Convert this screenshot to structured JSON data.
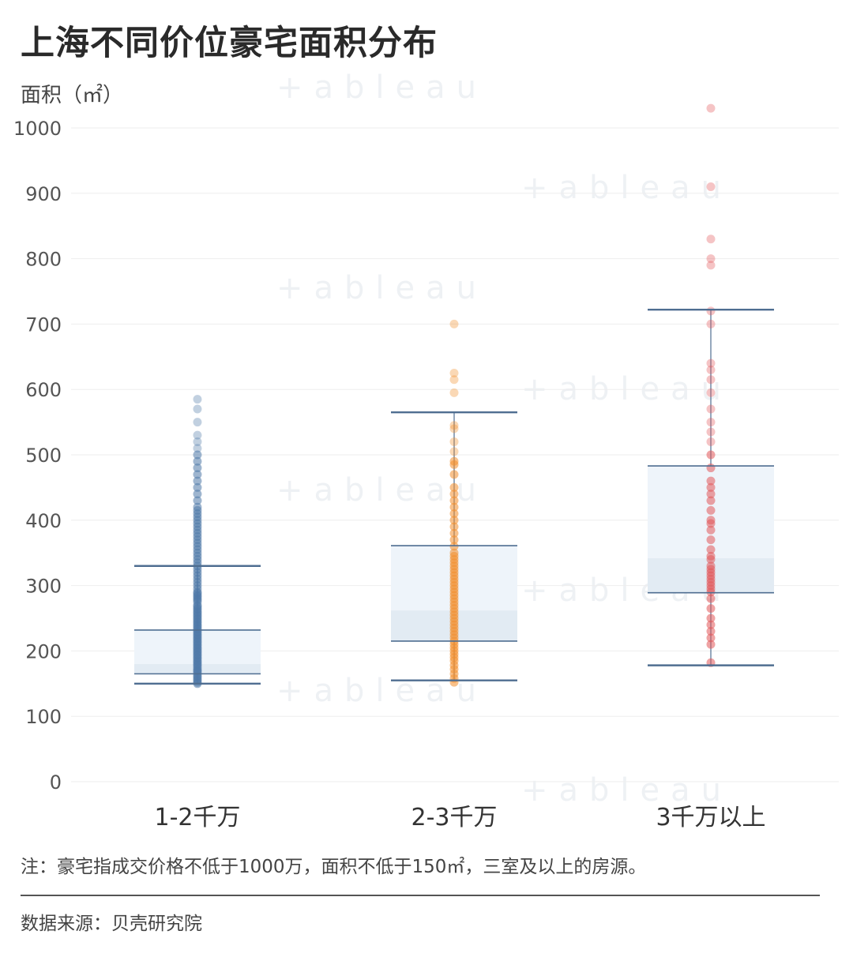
{
  "title": "上海不同价位豪宅面积分布",
  "note": "注：豪宅指成交价格不低于1000万，面积不低于150㎡，三室及以上的房源。",
  "source": "数据来源：贝壳研究院",
  "watermark": "+ableau",
  "colors": {
    "series": [
      "#4e79a7",
      "#f28e2b",
      "#e15759"
    ],
    "box_fill_upper": "#eef4fa",
    "box_fill_lower": "#e2ebf3",
    "box_line": "#4f6e91",
    "grid": "#eeeeee",
    "tick_text": "#555555"
  },
  "chart_data": {
    "type": "box",
    "ylabel": "面积（㎡）",
    "ylim": [
      0,
      1000
    ],
    "yticks": [
      0,
      100,
      200,
      300,
      400,
      500,
      600,
      700,
      800,
      900,
      1000
    ],
    "grid": true,
    "categories": [
      "1-2千万",
      "2-3千万",
      "3千万以上"
    ],
    "boxes": [
      {
        "category": "1-2千万",
        "whisker_low": 150,
        "q1": 165,
        "median": 180,
        "q3": 232,
        "whisker_high": 330
      },
      {
        "category": "2-3千万",
        "whisker_low": 155,
        "q1": 215,
        "median": 262,
        "q3": 361,
        "whisker_high": 565
      },
      {
        "category": "3千万以上",
        "whisker_low": 178,
        "q1": 289,
        "median": 342,
        "q3": 483,
        "whisker_high": 722
      }
    ],
    "points": [
      [
        150,
        152,
        155,
        157,
        160,
        162,
        165,
        168,
        170,
        172,
        175,
        178,
        180,
        183,
        185,
        188,
        190,
        193,
        195,
        198,
        200,
        203,
        205,
        208,
        210,
        213,
        215,
        218,
        220,
        223,
        225,
        228,
        230,
        233,
        235,
        238,
        240,
        243,
        245,
        248,
        250,
        253,
        255,
        258,
        260,
        263,
        265,
        268,
        270,
        275,
        278,
        280,
        283,
        285,
        288,
        290,
        295,
        300,
        305,
        310,
        315,
        320,
        325,
        330,
        335,
        340,
        345,
        350,
        355,
        360,
        365,
        370,
        375,
        380,
        385,
        390,
        395,
        400,
        405,
        410,
        415,
        420,
        430,
        440,
        450,
        460,
        470,
        480,
        490,
        500,
        510,
        520,
        530,
        550,
        570,
        585
      ],
      [
        152,
        158,
        165,
        172,
        178,
        185,
        190,
        195,
        200,
        205,
        210,
        215,
        220,
        225,
        230,
        235,
        240,
        245,
        250,
        255,
        260,
        265,
        270,
        275,
        280,
        285,
        290,
        295,
        300,
        305,
        310,
        315,
        320,
        325,
        330,
        335,
        340,
        345,
        350,
        360,
        370,
        380,
        390,
        400,
        410,
        420,
        430,
        440,
        450,
        470,
        485,
        490,
        505,
        520,
        540,
        545,
        595,
        615,
        625,
        700
      ],
      [
        182,
        210,
        220,
        230,
        240,
        250,
        265,
        280,
        290,
        295,
        300,
        305,
        310,
        315,
        320,
        325,
        330,
        340,
        345,
        355,
        370,
        385,
        395,
        400,
        415,
        430,
        440,
        450,
        460,
        480,
        500,
        520,
        535,
        550,
        570,
        595,
        615,
        630,
        640,
        700,
        720,
        790,
        800,
        830,
        910,
        1030
      ]
    ]
  }
}
